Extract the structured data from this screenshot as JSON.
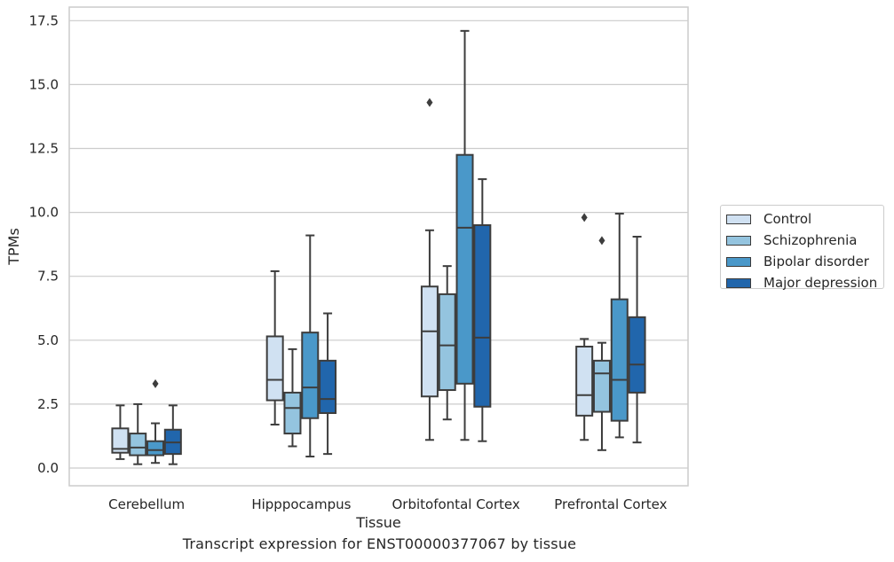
{
  "chart_data": {
    "type": "box",
    "xlabel": "Tissue",
    "ylabel": "TPMs",
    "caption": "Transcript expression for ENST00000377067 by tissue",
    "ylim": [
      -0.7,
      18.0
    ],
    "yticks": [
      "0.0",
      "2.5",
      "5.0",
      "7.5",
      "10.0",
      "12.5",
      "15.0",
      "17.5"
    ],
    "grid": "horizontal",
    "legend_position": "right",
    "categories": [
      "Cerebellum",
      "Hipppocampus",
      "Orbitofontal Cortex",
      "Prefrontal Cortex"
    ],
    "series": [
      {
        "name": "Control",
        "color": "#d0e1f2",
        "boxes": [
          {
            "whislo": 0.35,
            "q1": 0.6,
            "med": 0.75,
            "q3": 1.55,
            "whishi": 2.45,
            "fliers": []
          },
          {
            "whislo": 1.7,
            "q1": 2.65,
            "med": 3.45,
            "q3": 5.15,
            "whishi": 7.7,
            "fliers": []
          },
          {
            "whislo": 1.1,
            "q1": 2.8,
            "med": 5.35,
            "q3": 7.1,
            "whishi": 9.3,
            "fliers": [
              14.3
            ]
          },
          {
            "whislo": 1.1,
            "q1": 2.05,
            "med": 2.85,
            "q3": 4.75,
            "whishi": 5.05,
            "fliers": [
              9.8
            ]
          }
        ]
      },
      {
        "name": "Schizophrenia",
        "color": "#94c4df",
        "boxes": [
          {
            "whislo": 0.15,
            "q1": 0.5,
            "med": 0.8,
            "q3": 1.35,
            "whishi": 2.5,
            "fliers": []
          },
          {
            "whislo": 0.85,
            "q1": 1.35,
            "med": 2.35,
            "q3": 2.95,
            "whishi": 4.65,
            "fliers": []
          },
          {
            "whislo": 1.9,
            "q1": 3.05,
            "med": 4.8,
            "q3": 6.8,
            "whishi": 7.9,
            "fliers": []
          },
          {
            "whislo": 0.7,
            "q1": 2.2,
            "med": 3.7,
            "q3": 4.2,
            "whishi": 4.9,
            "fliers": [
              8.9
            ]
          }
        ]
      },
      {
        "name": "Bipolar disorder",
        "color": "#4a98c9",
        "boxes": [
          {
            "whislo": 0.2,
            "q1": 0.5,
            "med": 0.7,
            "q3": 1.05,
            "whishi": 1.75,
            "fliers": [
              3.3
            ]
          },
          {
            "whislo": 0.45,
            "q1": 1.95,
            "med": 3.15,
            "q3": 5.3,
            "whishi": 9.1,
            "fliers": []
          },
          {
            "whislo": 1.1,
            "q1": 3.3,
            "med": 9.4,
            "q3": 12.25,
            "whishi": 17.1,
            "fliers": []
          },
          {
            "whislo": 1.2,
            "q1": 1.85,
            "med": 3.45,
            "q3": 6.6,
            "whishi": 9.95,
            "fliers": []
          }
        ]
      },
      {
        "name": "Major depression",
        "color": "#2166ac",
        "boxes": [
          {
            "whislo": 0.15,
            "q1": 0.55,
            "med": 1.0,
            "q3": 1.5,
            "whishi": 2.45,
            "fliers": []
          },
          {
            "whislo": 0.55,
            "q1": 2.15,
            "med": 2.7,
            "q3": 4.2,
            "whishi": 6.05,
            "fliers": []
          },
          {
            "whislo": 1.05,
            "q1": 2.4,
            "med": 5.1,
            "q3": 9.5,
            "whishi": 11.3,
            "fliers": []
          },
          {
            "whislo": 1.0,
            "q1": 2.95,
            "med": 4.05,
            "q3": 5.9,
            "whishi": 9.05,
            "fliers": []
          }
        ]
      }
    ]
  }
}
